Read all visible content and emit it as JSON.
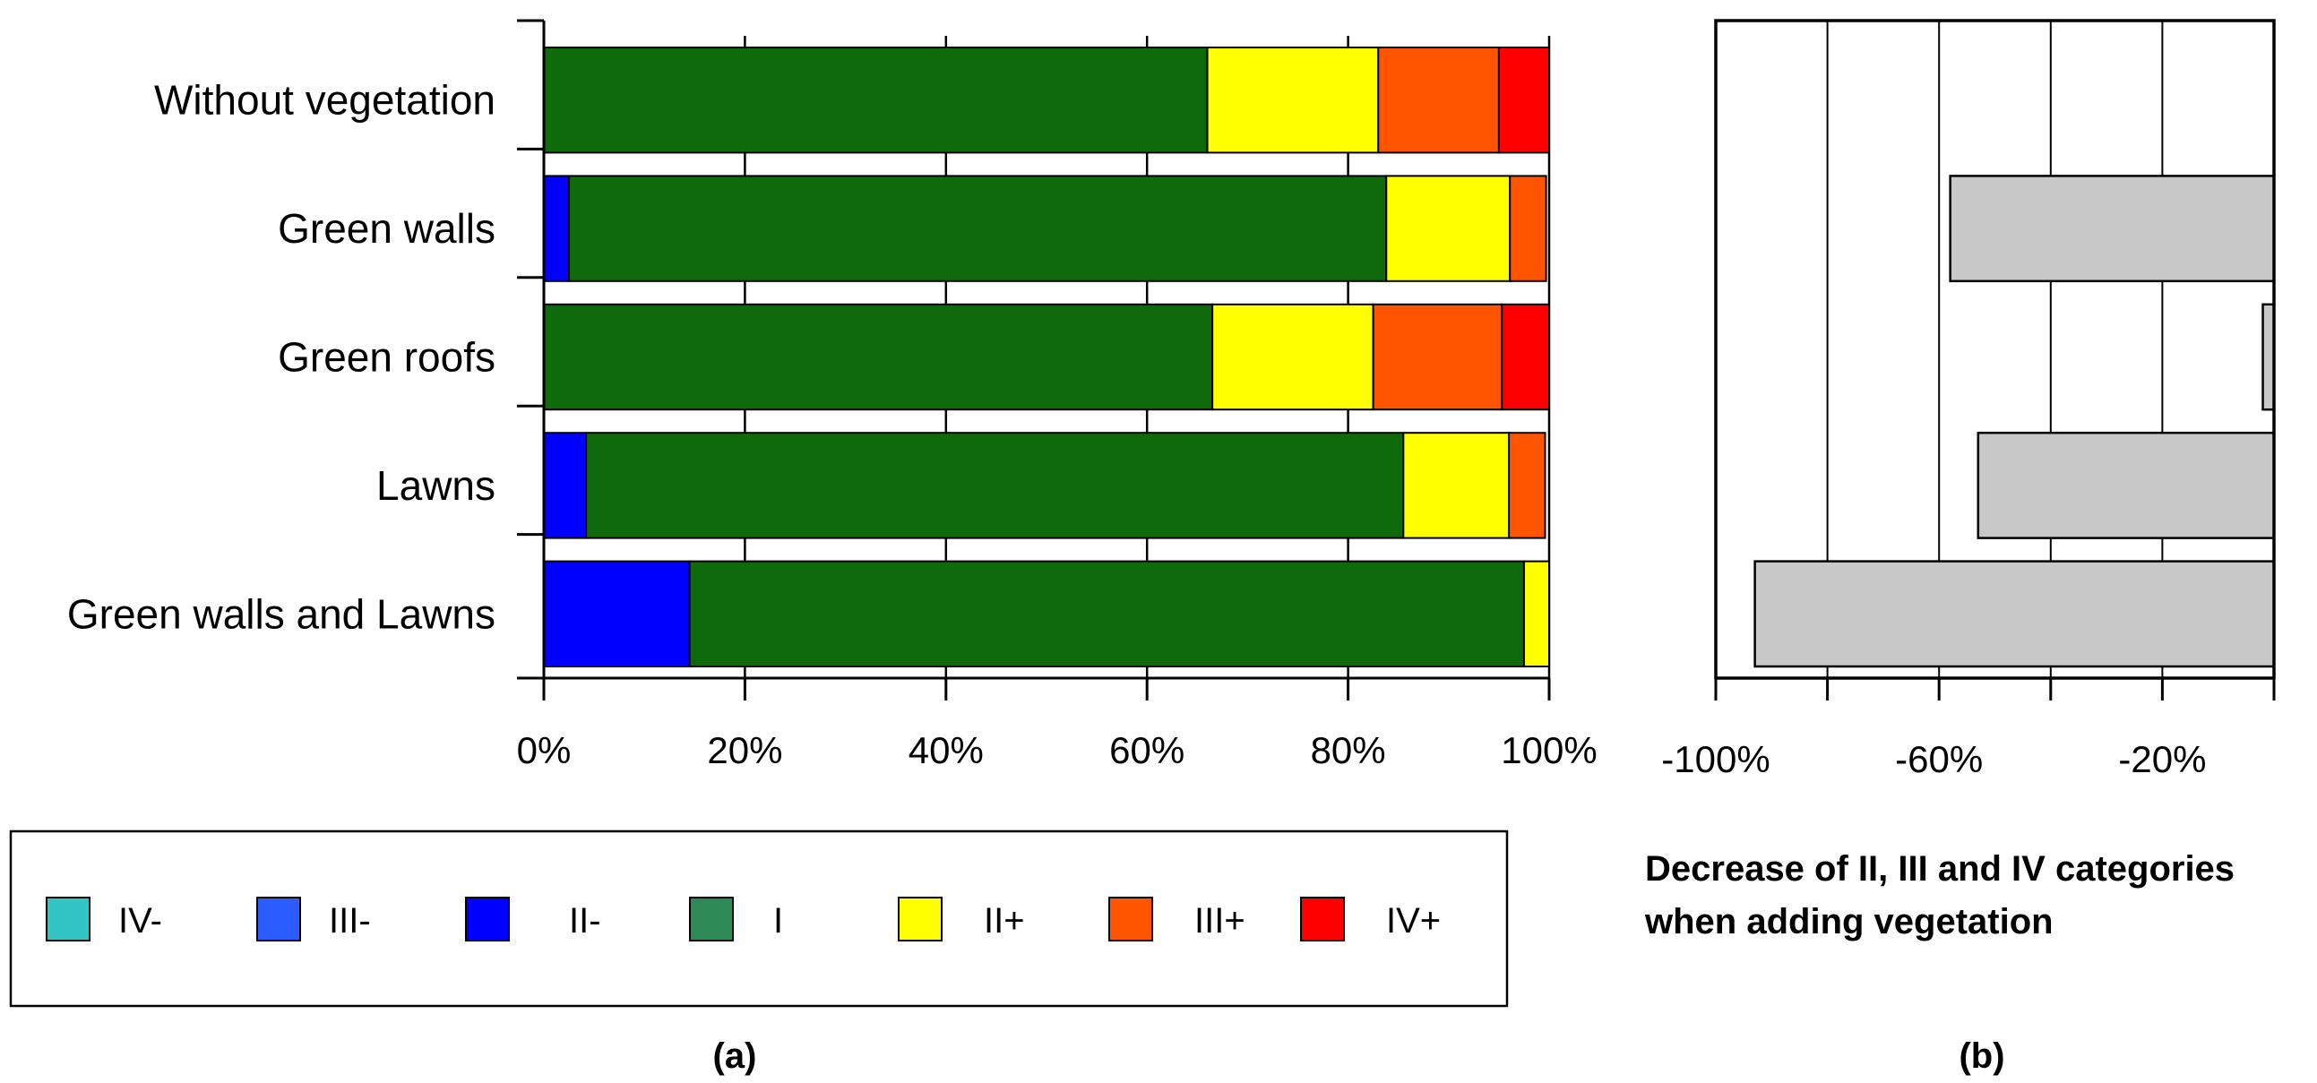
{
  "chart_data": [
    {
      "id": "a",
      "type": "bar",
      "stacked": true,
      "orientation": "horizontal",
      "caption": "(a)",
      "categories": [
        "Without vegetation",
        "Green walls",
        "Green roofs",
        "Lawns",
        "Green walls and Lawns"
      ],
      "xlim": [
        0,
        100
      ],
      "xticks": [
        "0%",
        "20%",
        "40%",
        "60%",
        "80%",
        "100%"
      ],
      "grid": true,
      "legend_position": "bottom",
      "series": [
        {
          "name": "IV-",
          "color": "#33c4c4",
          "values": [
            0,
            0,
            0,
            0,
            0
          ]
        },
        {
          "name": "III-",
          "color": "#2a5cff",
          "values": [
            0,
            0,
            0,
            0,
            0
          ]
        },
        {
          "name": "II-",
          "color": "#0000ff",
          "values": [
            0,
            2.5,
            0,
            4.2,
            14.5
          ]
        },
        {
          "name": "I",
          "color": "#0e6a0b",
          "legend_color": "#2e8b57",
          "values": [
            66,
            81.3,
            66.5,
            81.3,
            83
          ]
        },
        {
          "name": "II+",
          "color": "#ffff00",
          "values": [
            17,
            12.3,
            16,
            10.5,
            2.5
          ]
        },
        {
          "name": "III+",
          "color": "#ff5500",
          "values": [
            12,
            3.6,
            12.8,
            3.6,
            0
          ]
        },
        {
          "name": "IV+",
          "color": "#ff0000",
          "values": [
            5,
            0,
            4.7,
            0,
            0
          ]
        }
      ]
    },
    {
      "id": "b",
      "type": "bar",
      "orientation": "horizontal",
      "caption": "(b)",
      "categories": [
        "Without vegetation",
        "Green walls",
        "Green roofs",
        "Lawns",
        "Green walls and Lawns"
      ],
      "values": [
        0,
        -58,
        -2,
        -53,
        -93
      ],
      "xlim": [
        -100,
        0
      ],
      "xticks": [
        "-100%",
        "-60%",
        "-20%"
      ],
      "grid": true,
      "xlabel_line1": "Decrease of II, III and IV categories",
      "xlabel_line2": "when adding vegetation",
      "bar_color": "#c8c8c8"
    }
  ]
}
